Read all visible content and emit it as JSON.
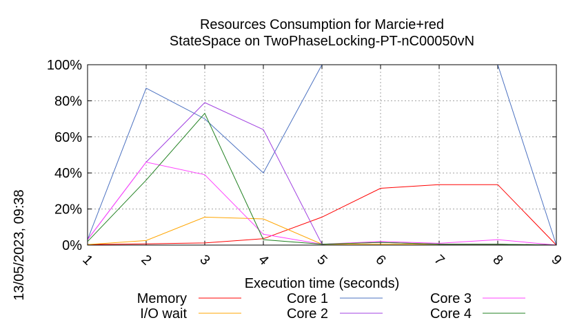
{
  "chart_data": {
    "type": "line",
    "title": "Resources Consumption for Marcie+red",
    "subtitle": "StateSpace on TwoPhaseLocking-PT-nC00050vN",
    "xlabel": "Execution time (seconds)",
    "ylabel": "",
    "side_label": "13/05/2023, 09:38",
    "x": [
      1,
      2,
      3,
      4,
      5,
      6,
      7,
      8,
      9
    ],
    "x_ticks": [
      "1",
      "2",
      "3",
      "4",
      "5",
      "6",
      "7",
      "8",
      "9"
    ],
    "xlim": [
      1,
      9
    ],
    "ylim": [
      0,
      100
    ],
    "y_ticks": [
      "0%",
      "20%",
      "40%",
      "60%",
      "80%",
      "100%"
    ],
    "y_tick_values": [
      0,
      20,
      40,
      60,
      80,
      100
    ],
    "grid": true,
    "legend_position": "bottom",
    "series": [
      {
        "name": "Memory",
        "color": "#ff0000",
        "values": [
          0.3,
          0.7,
          1.2,
          3.5,
          15.5,
          31.5,
          33.5,
          33.5,
          0
        ]
      },
      {
        "name": "I/O wait",
        "color": "#ffa500",
        "values": [
          0.3,
          2.5,
          15.5,
          14.5,
          0.5,
          0.5,
          0.5,
          0.5,
          0
        ]
      },
      {
        "name": "Core 1",
        "color": "#4a70c0",
        "values": [
          3,
          87,
          70,
          40,
          100,
          100,
          100,
          100,
          0
        ]
      },
      {
        "name": "Core 2",
        "color": "#a040e0",
        "values": [
          3,
          46,
          79,
          64,
          0.5,
          1.5,
          0.5,
          0.5,
          0
        ]
      },
      {
        "name": "Core 3",
        "color": "#ff40ff",
        "values": [
          3,
          46,
          39,
          6,
          0.5,
          2,
          1,
          3,
          0
        ]
      },
      {
        "name": "Core 4",
        "color": "#208020",
        "values": [
          2,
          36,
          73,
          3,
          0.5,
          1.5,
          0.5,
          0.5,
          0
        ]
      }
    ]
  }
}
